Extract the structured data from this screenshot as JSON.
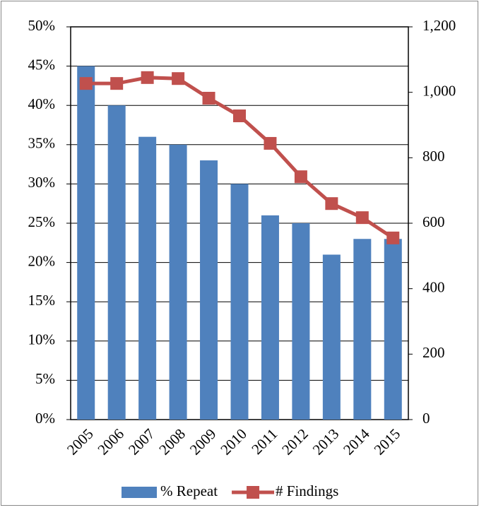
{
  "chart_data": {
    "type": "bar_line",
    "categories": [
      "2005",
      "2006",
      "2007",
      "2008",
      "2009",
      "2010",
      "2011",
      "2012",
      "2013",
      "2014",
      "2015"
    ],
    "series": [
      {
        "name": "% Repeat",
        "type": "bar",
        "color": "#4f81bd",
        "values": [
          45,
          40,
          36,
          35,
          33,
          30,
          26,
          25,
          21,
          23,
          23
        ]
      },
      {
        "name": "# Findings",
        "type": "line",
        "axis": "y2",
        "color": "#c0504d",
        "values": [
          1027,
          1027,
          1045,
          1042,
          982,
          928,
          844,
          742,
          660,
          617,
          555
        ]
      }
    ],
    "ylim": [
      0,
      50
    ],
    "yticks": [
      {
        "value": 0,
        "label": "0%"
      },
      {
        "value": 5,
        "label": "5%"
      },
      {
        "value": 10,
        "label": "10%"
      },
      {
        "value": 15,
        "label": "15%"
      },
      {
        "value": 20,
        "label": "20%"
      },
      {
        "value": 25,
        "label": "25%"
      },
      {
        "value": 30,
        "label": "30%"
      },
      {
        "value": 35,
        "label": "35%"
      },
      {
        "value": 40,
        "label": "40%"
      },
      {
        "value": 45,
        "label": "45%"
      },
      {
        "value": 50,
        "label": "50%"
      }
    ],
    "y2lim": [
      0,
      1200
    ],
    "y2ticks": [
      0,
      200,
      400,
      600,
      800,
      {
        "value": 1000,
        "label": "1,000"
      },
      {
        "value": 1200,
        "label": "1,200"
      }
    ],
    "grid": true
  }
}
